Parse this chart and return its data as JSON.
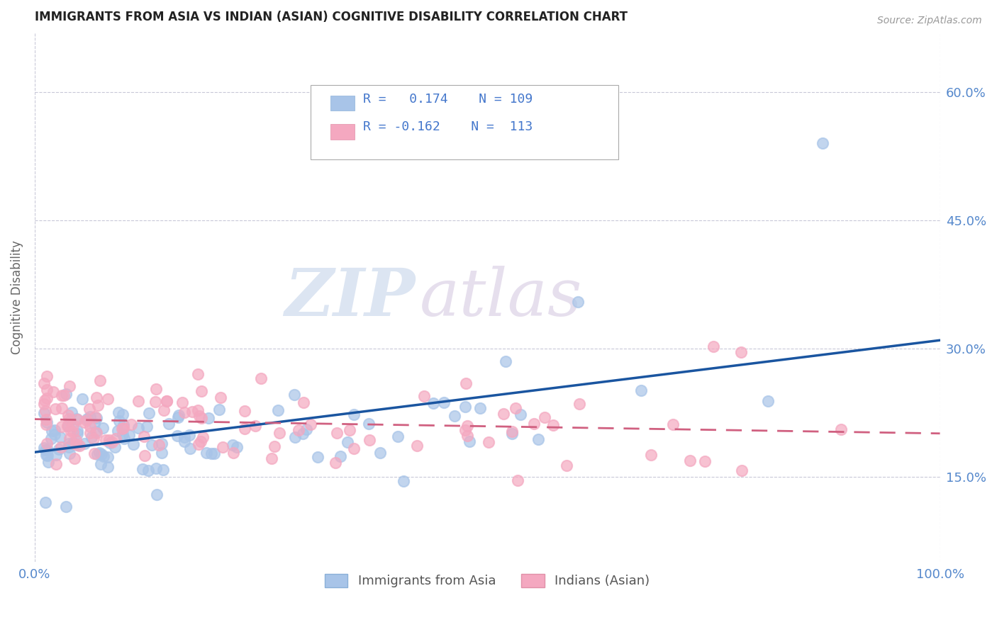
{
  "title": "IMMIGRANTS FROM ASIA VS INDIAN (ASIAN) COGNITIVE DISABILITY CORRELATION CHART",
  "source": "Source: ZipAtlas.com",
  "ylabel": "Cognitive Disability",
  "series1_label": "Immigrants from Asia",
  "series2_label": "Indians (Asian)",
  "series1_color": "#a8c4e8",
  "series2_color": "#f4a8c0",
  "series1_line_color": "#1a55a0",
  "series2_line_color": "#d06080",
  "R1": 0.174,
  "N1": 109,
  "R2": -0.162,
  "N2": 113,
  "xlim": [
    0.0,
    1.0
  ],
  "ylim": [
    0.05,
    0.67
  ],
  "yticks": [
    0.15,
    0.3,
    0.45,
    0.6
  ],
  "xticks": [
    0.0,
    1.0
  ],
  "watermark_zip": "ZIP",
  "watermark_atlas": "atlas",
  "title_color": "#222222",
  "axis_label_color": "#5588cc",
  "grid_color": "#c8c8d8",
  "background_color": "#ffffff",
  "legend_text_color": "#4477cc",
  "legend_label_color": "#333333"
}
